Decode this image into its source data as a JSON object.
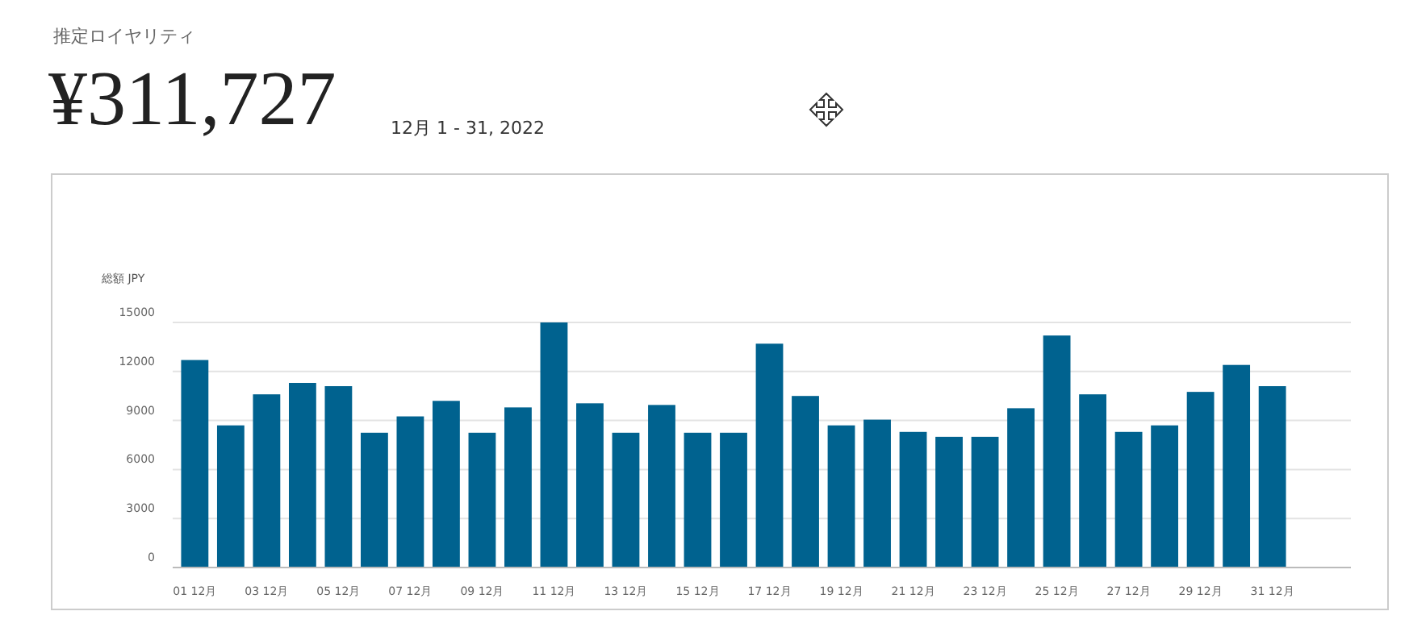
{
  "chart_data": {
    "type": "bar",
    "title": "推定ロイヤリティ",
    "subtitle": "¥311,727",
    "annotations": [
      "12月 1 - 31, 2022"
    ],
    "ylabel": "総額 JPY",
    "categories": [
      "01 12月",
      null,
      "03 12月",
      null,
      "05 12月",
      null,
      "07 12月",
      null,
      "09 12月",
      null,
      "11 12月",
      null,
      "13 12月",
      null,
      "15 12月",
      null,
      "17 12月",
      null,
      "19 12月",
      null,
      "21 12月",
      null,
      "23 12月",
      null,
      "25 12月",
      null,
      "27 12月",
      null,
      "29 12月",
      null,
      "31 12月"
    ],
    "values": [
      12700,
      8700,
      10600,
      11300,
      11100,
      8250,
      9250,
      10200,
      8250,
      9800,
      15000,
      10050,
      8250,
      9950,
      8250,
      8250,
      13700,
      10500,
      8700,
      9050,
      8300,
      8000,
      8000,
      9750,
      14200,
      10600,
      8300,
      8700,
      10750,
      12400,
      11100
    ],
    "color": "#00628f",
    "ylim": [
      0,
      15000
    ],
    "yticks": [
      0,
      3000,
      6000,
      9000,
      12000,
      15000
    ],
    "grid": "y"
  }
}
